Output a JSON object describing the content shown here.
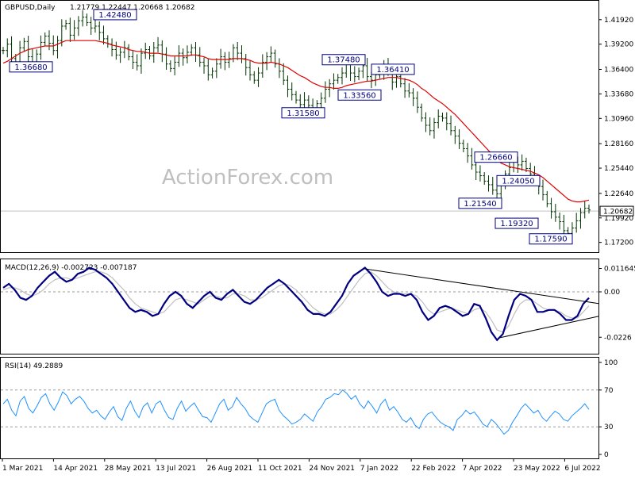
{
  "chart_data": [
    {
      "type": "candlestick",
      "title": "GBPUSD,Daily",
      "ohlc_text": "1.21779 1.22447 1.20668 1.20682",
      "watermark": "ActionForex.com",
      "current_price": "1.20682",
      "ylim": [
        1.1629,
        1.4375
      ],
      "y_ticks": [
        "1.41920",
        "1.39200",
        "1.36400",
        "1.33680",
        "1.30960",
        "1.28160",
        "1.25440",
        "1.22640",
        "1.19920",
        "1.17200"
      ],
      "x_ticks": [
        "1 Mar 2021",
        "14 Apr 2021",
        "28 May 2021",
        "13 Jul 2021",
        "26 Aug 2021",
        "11 Oct 2021",
        "24 Nov 2021",
        "7 Jan 2022",
        "22 Feb 2022",
        "7 Apr 2022",
        "23 May 2022",
        "6 Jul 2022"
      ],
      "annotations": [
        {
          "text": "1.42480",
          "value": 1.4248
        },
        {
          "text": "1.36680",
          "value": 1.3668
        },
        {
          "text": "1.37480",
          "value": 1.3748
        },
        {
          "text": "1.36410",
          "value": 1.3641
        },
        {
          "text": "1.33560",
          "value": 1.3356
        },
        {
          "text": "1.31580",
          "value": 1.3158
        },
        {
          "text": "1.26660",
          "value": 1.2666
        },
        {
          "text": "1.24050",
          "value": 1.2405
        },
        {
          "text": "1.21540",
          "value": 1.2154
        },
        {
          "text": "1.19320",
          "value": 1.1932
        },
        {
          "text": "1.17590",
          "value": 1.1759
        }
      ],
      "close_series": [
        1.385,
        1.392,
        1.376,
        1.372,
        1.388,
        1.395,
        1.378,
        1.372,
        1.381,
        1.394,
        1.401,
        1.393,
        1.385,
        1.396,
        1.412,
        1.415,
        1.402,
        1.41,
        1.418,
        1.422,
        1.416,
        1.41,
        1.412,
        1.405,
        1.398,
        1.392,
        1.386,
        1.38,
        1.383,
        1.388,
        1.378,
        1.372,
        1.368,
        1.382,
        1.386,
        1.379,
        1.388,
        1.391,
        1.381,
        1.37,
        1.365,
        1.372,
        1.382,
        1.377,
        1.383,
        1.388,
        1.38,
        1.372,
        1.368,
        1.358,
        1.362,
        1.37,
        1.378,
        1.372,
        1.376,
        1.388,
        1.382,
        1.376,
        1.366,
        1.358,
        1.352,
        1.36,
        1.372,
        1.378,
        1.382,
        1.37,
        1.362,
        1.352,
        1.342,
        1.336,
        1.33,
        1.325,
        1.33,
        1.324,
        1.318,
        1.326,
        1.332,
        1.342,
        1.348,
        1.352,
        1.355,
        1.36,
        1.37,
        1.36,
        1.356,
        1.362,
        1.368,
        1.356,
        1.352,
        1.358,
        1.36,
        1.368,
        1.362,
        1.35,
        1.356,
        1.348,
        1.34,
        1.338,
        1.332,
        1.322,
        1.31,
        1.302,
        1.296,
        1.305,
        1.312,
        1.31,
        1.304,
        1.296,
        1.29,
        1.282,
        1.276,
        1.268,
        1.258,
        1.25,
        1.246,
        1.24,
        1.236,
        1.23,
        1.226,
        1.235,
        1.248,
        1.255,
        1.262,
        1.258,
        1.262,
        1.254,
        1.248,
        1.24,
        1.234,
        1.225,
        1.215,
        1.206,
        1.2,
        1.195,
        1.185,
        1.182,
        1.188,
        1.196,
        1.205,
        1.21,
        1.208
      ],
      "ma_series": [
        1.371,
        1.373,
        1.376,
        1.379,
        1.382,
        1.384,
        1.386,
        1.387,
        1.388,
        1.389,
        1.39,
        1.39,
        1.39,
        1.392,
        1.394,
        1.396,
        1.396,
        1.396,
        1.396,
        1.396,
        1.396,
        1.396,
        1.396,
        1.395,
        1.394,
        1.393,
        1.391,
        1.39,
        1.389,
        1.388,
        1.386,
        1.385,
        1.384,
        1.384,
        1.383,
        1.382,
        1.382,
        1.382,
        1.381,
        1.38,
        1.379,
        1.379,
        1.379,
        1.379,
        1.379,
        1.38,
        1.38,
        1.379,
        1.378,
        1.376,
        1.375,
        1.375,
        1.375,
        1.375,
        1.375,
        1.376,
        1.376,
        1.376,
        1.375,
        1.374,
        1.372,
        1.371,
        1.371,
        1.371,
        1.372,
        1.371,
        1.37,
        1.368,
        1.366,
        1.363,
        1.36,
        1.357,
        1.355,
        1.352,
        1.349,
        1.347,
        1.345,
        1.344,
        1.344,
        1.343,
        1.343,
        1.344,
        1.346,
        1.347,
        1.348,
        1.349,
        1.35,
        1.351,
        1.351,
        1.352,
        1.353,
        1.354,
        1.355,
        1.355,
        1.355,
        1.354,
        1.353,
        1.352,
        1.35,
        1.347,
        1.343,
        1.34,
        1.336,
        1.332,
        1.329,
        1.326,
        1.322,
        1.318,
        1.314,
        1.309,
        1.304,
        1.299,
        1.294,
        1.289,
        1.284,
        1.279,
        1.274,
        1.269,
        1.264,
        1.26,
        1.258,
        1.256,
        1.255,
        1.254,
        1.253,
        1.252,
        1.251,
        1.249,
        1.247,
        1.244,
        1.24,
        1.236,
        1.232,
        1.228,
        1.224,
        1.22,
        1.218,
        1.217,
        1.217,
        1.218,
        1.219
      ]
    },
    {
      "type": "line",
      "title": "MACD(12,26,9) -0.002723 -0.007187",
      "ylim": [
        -0.03,
        0.015
      ],
      "y_ticks": [
        "0.011645",
        "0.00",
        "-0.0226"
      ],
      "series": [
        {
          "name": "MACD",
          "values": [
            0.002,
            0.004,
            0.001,
            -0.003,
            -0.004,
            -0.002,
            0.002,
            0.005,
            0.008,
            0.01,
            0.007,
            0.005,
            0.006,
            0.009,
            0.01,
            0.012,
            0.011,
            0.009,
            0.007,
            0.004,
            0.0,
            -0.004,
            -0.008,
            -0.01,
            -0.009,
            -0.01,
            -0.012,
            -0.011,
            -0.006,
            -0.002,
            0.0,
            -0.002,
            -0.006,
            -0.008,
            -0.005,
            -0.002,
            0.0,
            -0.003,
            -0.004,
            -0.001,
            0.001,
            -0.002,
            -0.005,
            -0.006,
            -0.004,
            -0.001,
            0.002,
            0.004,
            0.006,
            0.004,
            0.001,
            -0.002,
            -0.005,
            -0.009,
            -0.011,
            -0.011,
            -0.012,
            -0.01,
            -0.006,
            -0.002,
            0.004,
            0.008,
            0.01,
            0.012,
            0.009,
            0.005,
            0.0,
            -0.002,
            -0.001,
            -0.001,
            -0.002,
            -0.001,
            -0.004,
            -0.01,
            -0.014,
            -0.012,
            -0.008,
            -0.007,
            -0.008,
            -0.01,
            -0.012,
            -0.011,
            -0.006,
            -0.007,
            -0.013,
            -0.02,
            -0.024,
            -0.021,
            -0.012,
            -0.004,
            -0.001,
            -0.002,
            -0.004,
            -0.01,
            -0.01,
            -0.009,
            -0.009,
            -0.011,
            -0.014,
            -0.014,
            -0.012,
            -0.006,
            -0.003
          ]
        },
        {
          "name": "Signal",
          "values": [
            0.001,
            0.002,
            0.002,
            0.001,
            -0.001,
            -0.002,
            -0.001,
            0.001,
            0.004,
            0.006,
            0.007,
            0.007,
            0.006,
            0.007,
            0.008,
            0.009,
            0.01,
            0.01,
            0.009,
            0.007,
            0.004,
            0.001,
            -0.003,
            -0.006,
            -0.008,
            -0.009,
            -0.01,
            -0.011,
            -0.01,
            -0.007,
            -0.004,
            -0.003,
            -0.004,
            -0.005,
            -0.006,
            -0.004,
            -0.002,
            -0.002,
            -0.003,
            -0.003,
            -0.001,
            -0.001,
            -0.002,
            -0.004,
            -0.004,
            -0.003,
            -0.001,
            0.001,
            0.003,
            0.004,
            0.003,
            0.001,
            -0.002,
            -0.005,
            -0.008,
            -0.01,
            -0.011,
            -0.011,
            -0.009,
            -0.006,
            -0.002,
            0.002,
            0.006,
            0.009,
            0.01,
            0.008,
            0.005,
            0.002,
            0.0,
            -0.001,
            -0.001,
            -0.001,
            -0.002,
            -0.005,
            -0.009,
            -0.011,
            -0.01,
            -0.009,
            -0.008,
            -0.009,
            -0.01,
            -0.011,
            -0.009,
            -0.008,
            -0.01,
            -0.014,
            -0.019,
            -0.02,
            -0.017,
            -0.011,
            -0.006,
            -0.004,
            -0.004,
            -0.006,
            -0.008,
            -0.009,
            -0.009,
            -0.01,
            -0.012,
            -0.013,
            -0.013,
            -0.01,
            -0.007
          ]
        }
      ]
    },
    {
      "type": "line",
      "title": "RSI(14) 49.2889",
      "ylim": [
        0,
        100
      ],
      "y_ticks": [
        "100",
        "70",
        "30",
        "0"
      ],
      "series": [
        {
          "name": "RSI",
          "values": [
            55,
            60,
            48,
            42,
            58,
            63,
            50,
            45,
            53,
            62,
            66,
            55,
            48,
            57,
            68,
            64,
            55,
            60,
            63,
            58,
            50,
            45,
            48,
            42,
            38,
            46,
            52,
            41,
            37,
            50,
            58,
            47,
            40,
            52,
            56,
            45,
            55,
            58,
            48,
            40,
            38,
            50,
            58,
            47,
            52,
            56,
            48,
            41,
            40,
            35,
            45,
            55,
            60,
            48,
            52,
            62,
            55,
            50,
            42,
            38,
            35,
            45,
            55,
            58,
            60,
            48,
            42,
            38,
            33,
            35,
            38,
            44,
            40,
            36,
            46,
            52,
            60,
            62,
            66,
            65,
            70,
            66,
            60,
            64,
            55,
            50,
            58,
            52,
            45,
            55,
            60,
            48,
            52,
            46,
            38,
            35,
            40,
            32,
            28,
            38,
            44,
            46,
            40,
            35,
            32,
            30,
            26,
            38,
            42,
            48,
            44,
            46,
            40,
            33,
            30,
            38,
            34,
            28,
            22,
            26,
            35,
            42,
            50,
            55,
            50,
            45,
            48,
            40,
            36,
            42,
            47,
            44,
            38,
            36,
            42,
            46,
            50,
            55,
            49
          ]
        }
      ]
    }
  ]
}
